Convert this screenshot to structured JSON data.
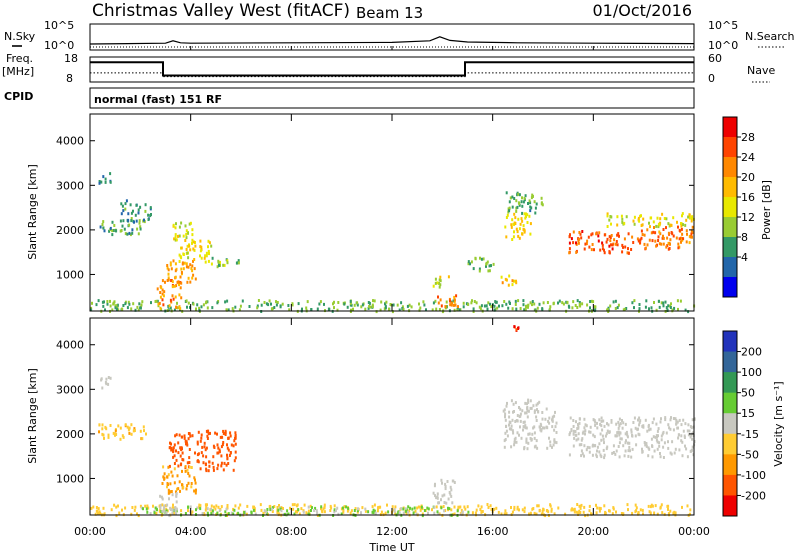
{
  "header": {
    "station": "Christmas Valley West (fitACF)",
    "beam": "Beam 13",
    "date": "01/Oct/2016"
  },
  "left_labels": {
    "nsky": "N.Sky",
    "freq": "Freq.",
    "mhz": "[MHz]",
    "cpid": "CPID"
  },
  "right_labels": {
    "nsearch": "N.Search",
    "nave": "Nave"
  },
  "ticks": {
    "noise_left": [
      "10^5",
      "10^0"
    ],
    "noise_right": [
      "10^5",
      "10^0"
    ],
    "freq_left": [
      "18",
      "8"
    ],
    "nave_right": [
      "60",
      "0"
    ],
    "time": [
      "00:00",
      "04:00",
      "08:00",
      "12:00",
      "16:00",
      "20:00",
      "00:00"
    ],
    "range": [
      "4000",
      "3000",
      "2000",
      "1000"
    ]
  },
  "cpid_text": "normal (fast) 151 RF",
  "axes": {
    "ylabel_top": "Slant Range [km]",
    "ylabel_bottom": "Slant Range [km]",
    "xlabel": "Time UT"
  },
  "colorbars": {
    "power": {
      "label": "Power [dB]",
      "ticks": [
        "28",
        "24",
        "20",
        "16",
        "12",
        "8",
        "4"
      ],
      "colors": [
        "#ee0000",
        "#ff4400",
        "#ff8800",
        "#ffbb00",
        "#e8e800",
        "#99cc33",
        "#339966",
        "#2266aa",
        "#0000ee"
      ]
    },
    "velocity": {
      "label": "Velocity [m s⁻¹]",
      "ticks": [
        "200",
        "100",
        "50",
        "15",
        "-15",
        "-50",
        "-100",
        "-200"
      ],
      "colors": [
        "#2233bb",
        "#336699",
        "#339955",
        "#66cc33",
        "#c8c8c0",
        "#ffcc33",
        "#ff9900",
        "#ff5500",
        "#ee0000"
      ]
    }
  },
  "chart_data": {
    "type": "heatmap",
    "x_unit": "hours UT",
    "xlim": [
      0,
      24
    ],
    "ylim": [
      180,
      4600
    ],
    "noise_sky_log10": {
      "x": [
        0,
        3,
        3.3,
        3.6,
        4,
        8,
        12,
        13.5,
        13.9,
        14.3,
        15,
        17,
        20,
        24
      ],
      "y": [
        0.5,
        0.7,
        1.3,
        0.8,
        0.7,
        0.8,
        0.9,
        1.3,
        2.3,
        1.4,
        1.0,
        0.8,
        0.7,
        0.6
      ]
    },
    "frequency_mhz": {
      "x": [
        0,
        2.9,
        2.9,
        14.9,
        14.9,
        24
      ],
      "y": [
        16.5,
        16.5,
        10.5,
        10.5,
        16.5,
        16.5
      ]
    },
    "nave": {
      "x": [
        0,
        2.9,
        2.9,
        14.9,
        14.9,
        24
      ],
      "y": [
        22,
        22,
        12,
        12,
        22,
        22
      ]
    },
    "power_db": [
      {
        "t0": 0.0,
        "t1": 24.0,
        "r0": 200,
        "r1": 450,
        "value": 10
      },
      {
        "t0": 0.2,
        "t1": 0.8,
        "r0": 3050,
        "r1": 3300,
        "value": 8
      },
      {
        "t0": 0.3,
        "t1": 2.0,
        "r0": 1900,
        "r1": 2250,
        "value": 9
      },
      {
        "t0": 1.2,
        "t1": 2.4,
        "r0": 2200,
        "r1": 2700,
        "value": 7
      },
      {
        "t0": 2.6,
        "t1": 3.6,
        "r0": 250,
        "r1": 900,
        "value": 24
      },
      {
        "t0": 3.0,
        "t1": 4.2,
        "r0": 800,
        "r1": 1350,
        "value": 22
      },
      {
        "t0": 3.4,
        "t1": 4.8,
        "r0": 1300,
        "r1": 1800,
        "value": 17
      },
      {
        "t0": 3.2,
        "t1": 4.2,
        "r0": 1800,
        "r1": 2200,
        "value": 15
      },
      {
        "t0": 4.8,
        "t1": 5.9,
        "r0": 1150,
        "r1": 1400,
        "value": 11
      },
      {
        "t0": 13.7,
        "t1": 14.6,
        "r0": 300,
        "r1": 600,
        "value": 24
      },
      {
        "t0": 13.6,
        "t1": 14.3,
        "r0": 750,
        "r1": 1000,
        "value": 15
      },
      {
        "t0": 14.9,
        "t1": 16.0,
        "r0": 1100,
        "r1": 1400,
        "value": 10
      },
      {
        "t0": 16.3,
        "t1": 17.0,
        "r0": 750,
        "r1": 1000,
        "value": 20
      },
      {
        "t0": 16.4,
        "t1": 17.5,
        "r0": 1800,
        "r1": 2400,
        "value": 18
      },
      {
        "t0": 16.5,
        "t1": 18.0,
        "r0": 2400,
        "r1": 2900,
        "value": 9
      },
      {
        "t0": 19.0,
        "t1": 21.5,
        "r0": 1500,
        "r1": 2000,
        "value": 27
      },
      {
        "t0": 21.5,
        "t1": 24.0,
        "r0": 1600,
        "r1": 2100,
        "value": 25
      },
      {
        "t0": 20.5,
        "t1": 24.0,
        "r0": 2100,
        "r1": 2400,
        "value": 16
      }
    ],
    "velocity_ms": [
      {
        "t0": 0.0,
        "t1": 24.0,
        "r0": 200,
        "r1": 450,
        "value": -30
      },
      {
        "t0": 2.0,
        "t1": 15.0,
        "r0": 200,
        "r1": 400,
        "value": 20
      },
      {
        "t0": 0.2,
        "t1": 0.8,
        "r0": 3050,
        "r1": 3300,
        "value": 0
      },
      {
        "t0": 0.3,
        "t1": 2.2,
        "r0": 1900,
        "r1": 2250,
        "value": -40
      },
      {
        "t0": 3.1,
        "t1": 5.8,
        "r0": 1200,
        "r1": 2100,
        "value": -180
      },
      {
        "t0": 2.8,
        "t1": 4.2,
        "r0": 700,
        "r1": 1300,
        "value": -60
      },
      {
        "t0": 2.7,
        "t1": 3.5,
        "r0": 250,
        "r1": 700,
        "value": 0
      },
      {
        "t0": 13.6,
        "t1": 14.5,
        "r0": 450,
        "r1": 1000,
        "value": 0
      },
      {
        "t0": 16.4,
        "t1": 18.5,
        "r0": 1700,
        "r1": 2800,
        "value": 0
      },
      {
        "t0": 19.0,
        "t1": 24.0,
        "r0": 1500,
        "r1": 2400,
        "value": 0
      },
      {
        "t0": 16.8,
        "t1": 17.0,
        "r0": 4350,
        "r1": 4500,
        "value": -200
      }
    ]
  }
}
